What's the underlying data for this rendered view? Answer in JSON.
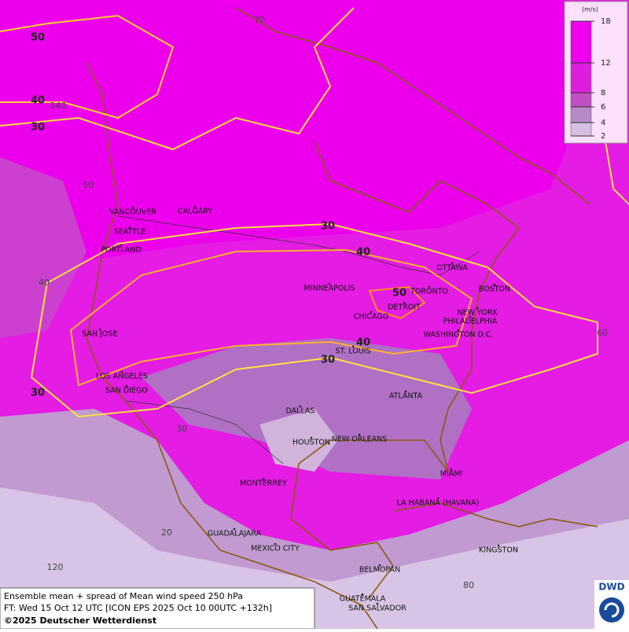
{
  "map": {
    "legend": {
      "unit": "(m/s)",
      "levels": [
        18,
        12,
        8,
        6,
        4,
        2
      ],
      "colors": [
        "#ee00ee",
        "#dd1fdd",
        "#c050c4",
        "#b68ac8",
        "#d6c0e2"
      ]
    },
    "contour_labels": [
      "50",
      "40",
      "30",
      "30",
      "40",
      "50",
      "40",
      "30",
      "30"
    ],
    "grid_labels": [
      "70",
      "140",
      "50",
      "40",
      "30",
      "20",
      "120",
      "80",
      "60"
    ],
    "cities": [
      "VANCOUVER",
      "CALGARY",
      "SEATTLE",
      "PORTLAND",
      "MINNEAPOLIS",
      "TORONTO",
      "OTTAWA",
      "BOSTON",
      "DETROIT",
      "CHICAGO",
      "NEW YORK",
      "PHILADELPHIA",
      "WASHINGTON D.C.",
      "SAN JOSE",
      "ST. LOUIS",
      "LOS ANGELES",
      "SAN DIEGO",
      "ATLANTA",
      "DALLAS",
      "HOUSTON",
      "NEW ORLEANS",
      "MIAMI",
      "MONTERREY",
      "LA HABANA (HAVANA)",
      "GUADALAJARA",
      "MEXICO CITY",
      "KINGSTON",
      "BELMOPAN",
      "GUATEMALA",
      "SAN SALVADOR"
    ],
    "footer": [
      "Ensemble mean + spread of Mean wind speed 250 hPa",
      "FT: Wed 15 Oct 12 UTC [ICON EPS 2025 Oct 10 00UTC +132h]",
      "©2025 Deutscher Wetterdienst"
    ],
    "logo": "DWD"
  }
}
